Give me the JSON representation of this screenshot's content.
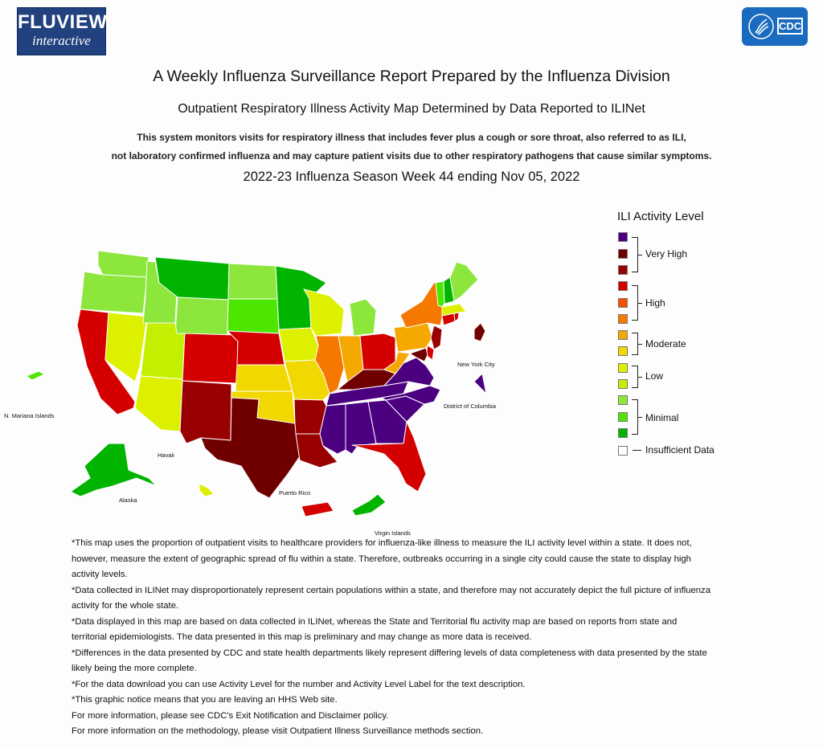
{
  "header": {
    "fluview_logo_line1": "FLUVIEW",
    "fluview_logo_line2": "interactive",
    "cdc_logo_text": "CDC"
  },
  "titles": {
    "main": "A Weekly Influenza Surveillance Report Prepared by the Influenza Division",
    "sub": "Outpatient Respiratory Illness Activity Map Determined by Data Reported to ILINet",
    "desc_line1": "This system monitors visits for respiratory illness that includes fever plus a cough or sore throat, also referred to as ILI,",
    "desc_line2": "not laboratory confirmed influenza and may capture patient visits due to other respiratory pathogens that cause similar symptoms.",
    "season": "2022-23 Influenza Season Week 44 ending Nov 05, 2022"
  },
  "map": {
    "labels": {
      "n_mariana": "N. Mariana Islands",
      "hawaii": "Havaii",
      "alaska": "Alaska",
      "puerto_rico": "Puerto Rico",
      "virgin_islands": "Virgin Islands",
      "new_york_city": "New York City",
      "dc": "District of Columbia"
    },
    "level_colors": {
      "1": "#00b400",
      "2": "#4ce600",
      "3": "#8ce63c",
      "4": "#c2f000",
      "5": "#dcf000",
      "6": "#f0d800",
      "7": "#f5a800",
      "8": "#f57800",
      "9": "#f55000",
      "10": "#d40000",
      "11": "#990000",
      "12": "#700000",
      "13": "#4b0080"
    },
    "states": {
      "WA": 3,
      "OR": 3,
      "CA": 10,
      "NV": 5,
      "ID": 3,
      "MT": 1,
      "WY": 3,
      "UT": 4,
      "AZ": 5,
      "CO": 10,
      "NM": 11,
      "ND": 3,
      "SD": 2,
      "NE": 10,
      "KS": 6,
      "OK": 6,
      "TX": 12,
      "MN": 1,
      "IA": 5,
      "MO": 6,
      "AR": 11,
      "LA": 11,
      "WI": 5,
      "IL": 8,
      "MI": 3,
      "IN": 7,
      "OH": 10,
      "KY": 12,
      "TN": 13,
      "MS": 13,
      "AL": 13,
      "GA": 13,
      "FL": 10,
      "SC": 13,
      "NC": 13,
      "VA": 13,
      "WV": 7,
      "PA": 7,
      "NY": 8,
      "NJ": 11,
      "DE": 10,
      "MD": 12,
      "CT": 10,
      "RI": 10,
      "MA": 5,
      "VT": 2,
      "NH": 1,
      "ME": 3,
      "AK": 1,
      "HI": 5,
      "PR": 10,
      "VI": 1,
      "MP": 2,
      "NYC": 12,
      "DC": 13
    }
  },
  "legend": {
    "title": "ILI Activity Level",
    "swatches": [
      "#4b0080",
      "#700000",
      "#990000",
      "#d40000",
      "#f55000",
      "#f57800",
      "#f5a800",
      "#f0d800",
      "#dcf000",
      "#c2f000",
      "#8ce63c",
      "#4ce600",
      "#00b400",
      "#ffffff"
    ],
    "groups": [
      "Very High",
      "High",
      "Moderate",
      "Low",
      "Minimal"
    ],
    "insufficient": "Insufficient Data"
  },
  "notes": [
    "*This map uses the proportion of outpatient visits to healthcare providers for influenza-like illness to measure the ILI activity level within a state. It does not, however, measure the extent of geographic spread of flu within a state. Therefore, outbreaks occurring in a single city could cause the state to display high activity levels.",
    "*Data collected in ILINet may disproportionately represent certain populations within a state, and therefore may not accurately depict the full picture of influenza activity for the whole state.",
    "*Data displayed in this map are based on data collected in ILINet, whereas the State and Territorial flu activity map are based on reports from state and territorial epidemiologists. The data presented in this map is preliminary and may change as more data is received.",
    "*Differences in the data presented by CDC and state health departments likely represent differing levels of data completeness with data presented by the state likely being the more complete.",
    "*For the data download you can use Activity Level for the number and Activity Level Label for the text description.",
    "*This graphic notice means that you are leaving an HHS Web site.",
    "For more information, please see CDC's Exit Notification and Disclaimer policy.",
    "For more information on the methodology, please visit Outpatient Illness Surveillance methods section."
  ]
}
